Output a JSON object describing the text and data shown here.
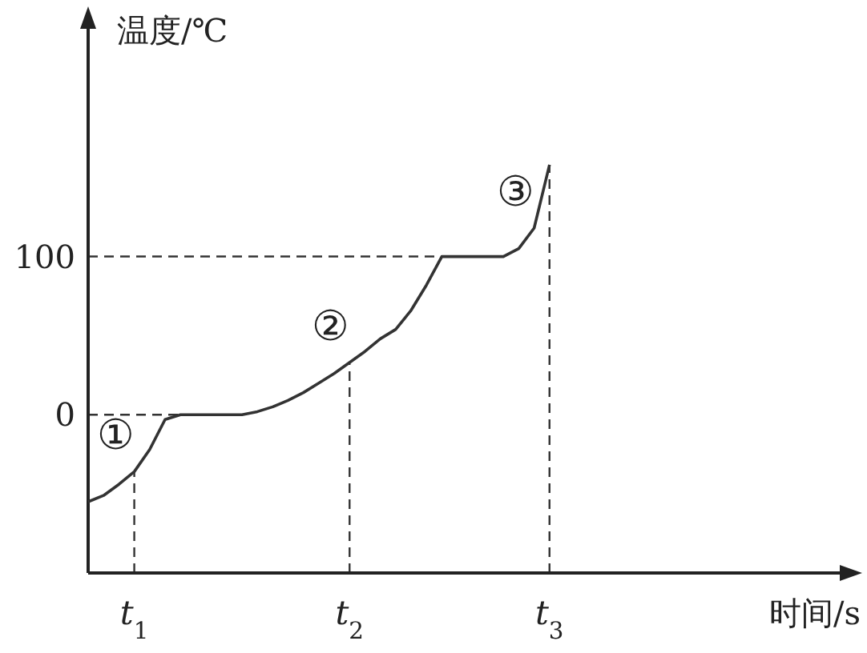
{
  "chart_data": {
    "type": "line",
    "xlabel": "时间/s",
    "ylabel": "温度/℃",
    "categories": [
      null,
      null,
      null,
      "*t*$_{1}$",
      null,
      null,
      null,
      null,
      null,
      null,
      null,
      null,
      null,
      null,
      null,
      null,
      null,
      "*t*$_{2}$",
      null,
      null,
      null,
      null,
      null,
      null,
      null,
      null,
      null,
      null,
      null,
      null,
      "*t*$_{3}$",
      null,
      null,
      null,
      null,
      null,
      null,
      null,
      null,
      null,
      null,
      null,
      null,
      null,
      null,
      null,
      null,
      null,
      null,
      null
    ],
    "ylim": [
      -100,
      250
    ],
    "yticks": [
      0,
      100
    ],
    "grid": false,
    "marker": "none",
    "line_style": "solid",
    "series": [
      {
        "color": "#333333",
        "values": [
          -55,
          -51,
          -44,
          -36,
          -22,
          -3,
          0,
          0,
          0,
          0,
          0,
          2,
          5,
          9,
          14,
          20,
          26,
          33,
          40,
          48,
          54,
          66,
          82,
          100,
          100,
          100,
          100,
          100,
          105,
          118,
          158,
          null,
          null,
          null,
          null,
          null,
          null,
          null,
          null,
          null,
          null,
          null,
          null,
          null,
          null,
          null,
          null,
          null,
          null,
          null
        ]
      }
    ],
    "ref_lines": [
      {
        "axis": "y",
        "value": 0,
        "line_style": "dashed"
      },
      {
        "axis": "y",
        "value": 100,
        "line_style": "dashed"
      },
      {
        "axis": "x",
        "value": "*t*$_{1}$",
        "line_style": "dashed"
      },
      {
        "axis": "x",
        "value": "*t*$_{2}$",
        "line_style": "dashed"
      },
      {
        "axis": "x",
        "value": "*t*$_{3}$",
        "line_style": "dashed"
      }
    ],
    "annotations": [
      "①",
      "②",
      "③"
    ]
  }
}
